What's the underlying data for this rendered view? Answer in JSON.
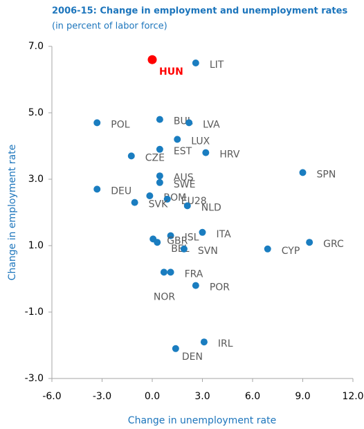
{
  "chart_data": {
    "type": "scatter",
    "title": "2006-15: Change in employment and unemployment rates",
    "subtitle": "(in percent of labor force)",
    "x_label": "Change in unemployment  rate",
    "y_label": "Change in employment rate",
    "labels": [
      "HUN",
      "LIT",
      "POL",
      "BUL",
      "LVA",
      "LUX",
      "EST",
      "HRV",
      "CZE",
      "SPN",
      "AUS",
      "SWE",
      "DEU",
      "ROM",
      "EU28",
      "SVK",
      "NLD",
      "ITA",
      "ISL",
      "GBR",
      "BEL",
      "SVN",
      "CYP",
      "GRC",
      "NOR",
      "FRA",
      "POR",
      "IRL",
      "DEN"
    ],
    "x": [
      0,
      2.6,
      -3.3,
      0.45,
      2.2,
      1.5,
      0.45,
      3.2,
      -1.25,
      9.0,
      0.45,
      0.45,
      -3.3,
      -0.15,
      0.9,
      -1.05,
      2.1,
      3.0,
      1.1,
      0.05,
      0.3,
      1.9,
      6.9,
      9.4,
      0.7,
      1.1,
      2.6,
      3.1,
      1.4
    ],
    "y": [
      6.6,
      6.5,
      4.7,
      4.8,
      4.7,
      4.2,
      3.9,
      3.8,
      3.7,
      3.2,
      3.1,
      2.9,
      2.7,
      2.5,
      2.4,
      2.3,
      2.2,
      1.4,
      1.3,
      1.2,
      1.1,
      0.9,
      0.9,
      1.1,
      0.2,
      0.2,
      -0.2,
      -1.9,
      -2.1
    ],
    "colors": [
      "#ff0000",
      "#1a7dc0",
      "#1a7dc0",
      "#1a7dc0",
      "#1a7dc0",
      "#1a7dc0",
      "#1a7dc0",
      "#1a7dc0",
      "#1a7dc0",
      "#1a7dc0",
      "#1a7dc0",
      "#1a7dc0",
      "#1a7dc0",
      "#1a7dc0",
      "#1a7dc0",
      "#1a7dc0",
      "#1a7dc0",
      "#1a7dc0",
      "#1a7dc0",
      "#1a7dc0",
      "#1a7dc0",
      "#1a7dc0",
      "#1a7dc0",
      "#1a7dc0",
      "#1a7dc0",
      "#1a7dc0",
      "#1a7dc0",
      "#1a7dc0",
      "#1a7dc0"
    ],
    "xlim": [
      -6,
      12
    ],
    "ylim": [
      -3,
      7
    ],
    "xticks": [
      {
        "value": -6,
        "label": "-6.0"
      },
      {
        "value": -3,
        "label": "-3.0"
      },
      {
        "value": 0,
        "label": "0.0"
      },
      {
        "value": 3,
        "label": "3.0"
      },
      {
        "value": 6,
        "label": "6.0"
      },
      {
        "value": 9,
        "label": "9.0"
      },
      {
        "value": 12,
        "label": "12.0"
      }
    ],
    "yticks": [
      {
        "value": -3,
        "label": "-3.0"
      },
      {
        "value": -1,
        "label": "-1.0"
      },
      {
        "value": 1,
        "label": "1.0"
      },
      {
        "value": 3,
        "label": "3.0"
      },
      {
        "value": 5,
        "label": "5.0"
      },
      {
        "value": 7,
        "label": "7.0"
      }
    ],
    "grid": false
  }
}
